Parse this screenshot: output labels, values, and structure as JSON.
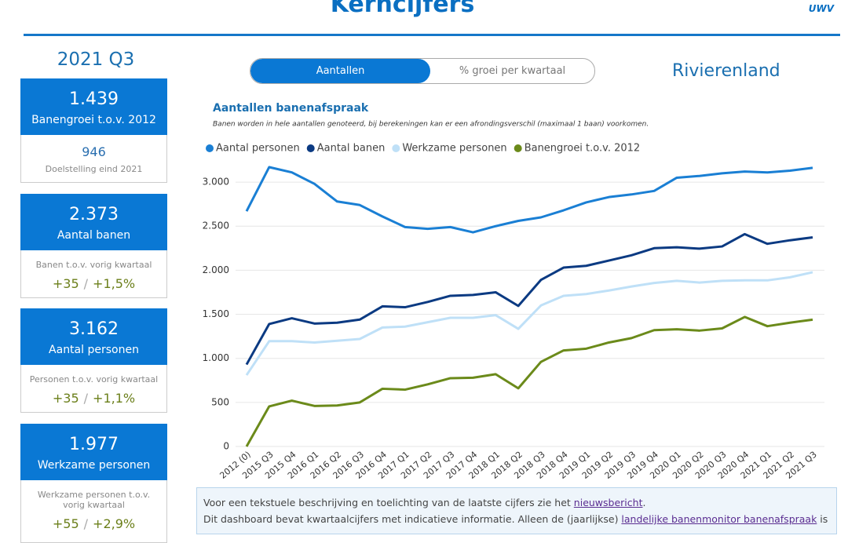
{
  "header": {
    "title": "Kerncijfers",
    "logo": "UWV"
  },
  "period": "2021 Q3",
  "cards": [
    {
      "value": "1.439",
      "label": "Banengroei t.o.v. 2012",
      "sub_value": "946",
      "sub_label": "Doelstelling eind 2021"
    },
    {
      "value": "2.373",
      "label": "Aantal banen",
      "sub_label": "Banen t.o.v. vorig kwartaal",
      "change": "+35",
      "separator": "/",
      "change_pct": "+1,5%"
    },
    {
      "value": "3.162",
      "label": "Aantal personen",
      "sub_label": "Personen t.o.v. vorig kwartaal",
      "change": "+35",
      "separator": "/",
      "change_pct": "+1,1%"
    },
    {
      "value": "1.977",
      "label": "Werkzame personen",
      "sub_label": "Werkzame personen t.o.v. vorig kwartaal",
      "change": "+55",
      "separator": "/",
      "change_pct": "+2,9%"
    }
  ],
  "toggle": {
    "active": "Aantallen",
    "inactive": "% groei per kwartaal"
  },
  "region": "Rivierenland",
  "chart_data": {
    "type": "line",
    "title": "Aantallen banenafspraak",
    "subtitle": "Banen worden in hele aantallen genoteerd, bij berekeningen kan er een afrondingsverschil (maximaal 1 baan) voorkomen.",
    "categories": [
      "2012 (0)",
      "2015 Q3",
      "2015 Q4",
      "2016 Q1",
      "2016 Q2",
      "2016 Q3",
      "2016 Q4",
      "2017 Q1",
      "2017 Q2",
      "2017 Q3",
      "2017 Q4",
      "2018 Q1",
      "2018 Q2",
      "2018 Q3",
      "2018 Q4",
      "2019 Q1",
      "2019 Q2",
      "2019 Q3",
      "2019 Q4",
      "2020 Q1",
      "2020 Q2",
      "2020 Q3",
      "2020 Q4",
      "2021 Q1",
      "2021 Q2",
      "2021 Q3"
    ],
    "series": [
      {
        "name": "Aantal personen",
        "color": "#1a7fd4",
        "values": [
          2670,
          3170,
          3110,
          2980,
          2780,
          2740,
          2610,
          2490,
          2470,
          2490,
          2430,
          2500,
          2560,
          2600,
          2680,
          2770,
          2830,
          2860,
          2900,
          3050,
          3070,
          3100,
          3120,
          3110,
          3130,
          3162
        ]
      },
      {
        "name": "Aantal banen",
        "color": "#0b3a82",
        "values": [
          930,
          1390,
          1455,
          1395,
          1405,
          1440,
          1590,
          1580,
          1640,
          1710,
          1720,
          1750,
          1595,
          1890,
          2030,
          2050,
          2110,
          2170,
          2250,
          2260,
          2245,
          2270,
          2410,
          2300,
          2340,
          2373
        ]
      },
      {
        "name": "Werkzame personen",
        "color": "#bfe0f7",
        "values": [
          810,
          1195,
          1195,
          1180,
          1200,
          1220,
          1350,
          1360,
          1410,
          1460,
          1460,
          1490,
          1335,
          1600,
          1710,
          1730,
          1770,
          1815,
          1855,
          1880,
          1860,
          1880,
          1885,
          1885,
          1920,
          1977
        ]
      },
      {
        "name": "Banengroei t.o.v. 2012",
        "color": "#6b8a1a",
        "values": [
          0,
          455,
          520,
          460,
          465,
          500,
          655,
          645,
          705,
          775,
          780,
          820,
          660,
          960,
          1090,
          1110,
          1180,
          1230,
          1320,
          1330,
          1315,
          1340,
          1470,
          1365,
          1405,
          1439
        ]
      }
    ],
    "ylim": [
      0,
      3250
    ],
    "yticks": [
      0,
      500,
      {
        "value": 1000,
        "label": "1.000"
      },
      {
        "value": 1500,
        "label": "1.500"
      },
      {
        "value": 2000,
        "label": "2.000"
      },
      {
        "value": 2500,
        "label": "2.500"
      },
      {
        "value": 3000,
        "label": "3.000"
      }
    ],
    "grid": true,
    "legend": "top"
  },
  "info": {
    "line1": {
      "text": "Voor een tekstuele beschrijving en toelichting van de laatste cijfers zie het ",
      "link": "nieuwsbericht",
      "end": "."
    },
    "line2": {
      "text": "Dit dashboard bevat kwartaalcijfers met indicatieve informatie. Alleen de (jaarlijkse) ",
      "link": "landelijke banenmonitor banenafspraak",
      "end": " is"
    }
  }
}
